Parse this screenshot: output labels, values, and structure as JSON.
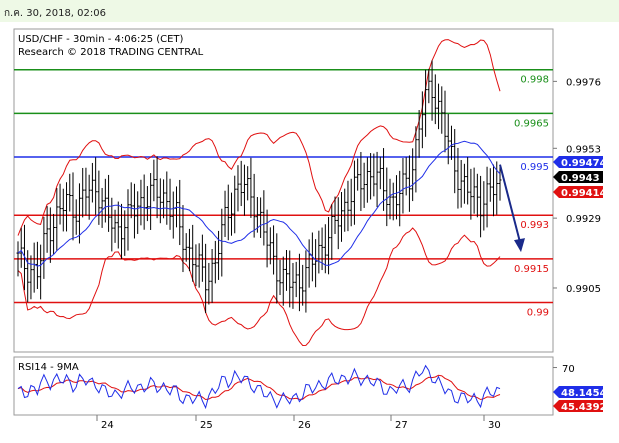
{
  "header": {
    "date": "ก.ค. 30, 2018, 02:06"
  },
  "chart_data": {
    "type": "candlestick",
    "title": "USD/CHF - 30min - 4:06:25 (CET)",
    "subtitle": "Research © 2018 TRADING CENTRAL",
    "y_axis": {
      "ticks": [
        "0.9976",
        "0.9953",
        "0.9929",
        "0.9905"
      ],
      "ylim": [
        0.9883,
        0.9994
      ]
    },
    "x_axis": {
      "ticks": [
        "24",
        "25",
        "26",
        "27",
        "30"
      ]
    },
    "levels": [
      {
        "label": "0.998",
        "value": 0.998,
        "color": "#1a8f1a"
      },
      {
        "label": "0.9965",
        "value": 0.9965,
        "color": "#1a8f1a"
      },
      {
        "label": "0.995",
        "value": 0.995,
        "color": "#1f2ee8"
      },
      {
        "label": "0.993",
        "value": 0.993,
        "color": "#e01010"
      },
      {
        "label": "0.9915",
        "value": 0.9915,
        "color": "#e01010"
      },
      {
        "label": "0.99",
        "value": 0.99,
        "color": "#e01010"
      }
    ],
    "price_tags": [
      {
        "label": "0.99474",
        "value": 0.99474,
        "color": "#1f2ee8"
      },
      {
        "label": "0.9943",
        "value": 0.9943,
        "color": "#000000"
      },
      {
        "label": "0.99414",
        "value": 0.99414,
        "color": "#e01010"
      }
    ],
    "close_path": [
      0.9915,
      0.9912,
      0.991,
      0.9925,
      0.993,
      0.9935,
      0.9932,
      0.9938,
      0.994,
      0.993,
      0.9925,
      0.9928,
      0.9933,
      0.9936,
      0.9938,
      0.9936,
      0.993,
      0.992,
      0.9914,
      0.9908,
      0.9913,
      0.9928,
      0.9938,
      0.994,
      0.9935,
      0.9924,
      0.9914,
      0.9908,
      0.9906,
      0.9909,
      0.9914,
      0.992,
      0.9925,
      0.9932,
      0.9938,
      0.9942,
      0.9945,
      0.994,
      0.9935,
      0.9938,
      0.9945,
      0.9965,
      0.9975,
      0.9965,
      0.995,
      0.9942,
      0.9937,
      0.9935,
      0.9938,
      0.994
    ],
    "rsi": {
      "label": "RSI14 - 9MA",
      "level": "70",
      "rsi_value": "48.1454",
      "ma_value": "45.4392",
      "rsi_color": "#1f2ee8",
      "ma_color": "#e01010"
    },
    "colors": {
      "price": "#000000",
      "ma": "#1f2ee8",
      "bands": "#e01010",
      "arrow": "#1a2a8a"
    }
  }
}
